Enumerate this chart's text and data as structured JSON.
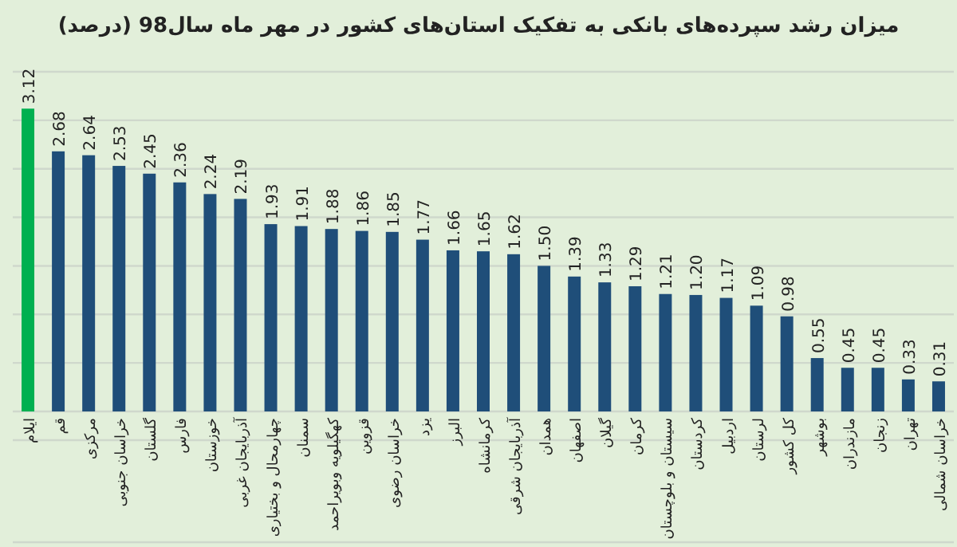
{
  "chart_data": {
    "type": "bar",
    "title": "میزان رشد سپرده‌های بانکی به تفکیک استان‌های کشور در مهر ماه سال98 (درصد)",
    "categories": [
      "ایلام",
      "قم",
      "مرکزی",
      "خراسان جنوبی",
      "گلستان",
      "فارس",
      "خوزستان",
      "آذربایجان غربی",
      "چهارمحال و بختیاری",
      "سمنان",
      "کهگیلویه وبویراحمد",
      "قزوین",
      "خراسان رضوی",
      "یزد",
      "البرز",
      "کرمانشاه",
      "آذربایجان شرقی",
      "همدان",
      "اصفهان",
      "گیلان",
      "کرمان",
      "سیستان و بلوچستان",
      "کردستان",
      "اردبیل",
      "لرستان",
      "کل کشور",
      "بوشهر",
      "مازندران",
      "زنجان",
      "تهران",
      "خراسان شمالی"
    ],
    "values": [
      3.12,
      2.68,
      2.64,
      2.53,
      2.45,
      2.36,
      2.24,
      2.19,
      1.93,
      1.91,
      1.88,
      1.86,
      1.85,
      1.77,
      1.66,
      1.65,
      1.62,
      1.5,
      1.39,
      1.33,
      1.29,
      1.21,
      1.2,
      1.17,
      1.09,
      0.98,
      0.55,
      0.45,
      0.45,
      0.33,
      0.31
    ],
    "colors": [
      "#00b050",
      "#1f4e79",
      "#1f4e79",
      "#1f4e79",
      "#1f4e79",
      "#1f4e79",
      "#1f4e79",
      "#1f4e79",
      "#1f4e79",
      "#1f4e79",
      "#1f4e79",
      "#1f4e79",
      "#1f4e79",
      "#1f4e79",
      "#1f4e79",
      "#1f4e79",
      "#1f4e79",
      "#1f4e79",
      "#1f4e79",
      "#1f4e79",
      "#1f4e79",
      "#1f4e79",
      "#1f4e79",
      "#1f4e79",
      "#1f4e79",
      "#1f4e79",
      "#1f4e79",
      "#1f4e79",
      "#1f4e79",
      "#1f4e79",
      "#1f4e79"
    ],
    "ylim": [
      0,
      3.5
    ],
    "yticks": [
      {
        "value": 0,
        "label": null
      },
      {
        "value": 0.5,
        "label": null
      },
      {
        "value": 1,
        "label": null
      },
      {
        "value": 1.5,
        "label": null
      },
      {
        "value": 2,
        "label": null
      },
      {
        "value": 2.5,
        "label": null
      },
      {
        "value": 3,
        "label": null
      },
      {
        "value": 3.5,
        "label": null
      }
    ],
    "value_labels": [
      "3.12",
      "2.68",
      "2.64",
      "2.53",
      "2.45",
      "2.36",
      "2.24",
      "2.19",
      "1.93",
      "1.91",
      "1.88",
      "1.86",
      "1.85",
      "1.77",
      "1.66",
      "1.65",
      "1.62",
      "1.50",
      "1.39",
      "1.33",
      "1.29",
      "1.21",
      "1.20",
      "1.17",
      "1.09",
      "0.98",
      "0.55",
      "0.45",
      "0.45",
      "0.33",
      "0.31"
    ],
    "grid": "y",
    "tick_labels": "x"
  }
}
